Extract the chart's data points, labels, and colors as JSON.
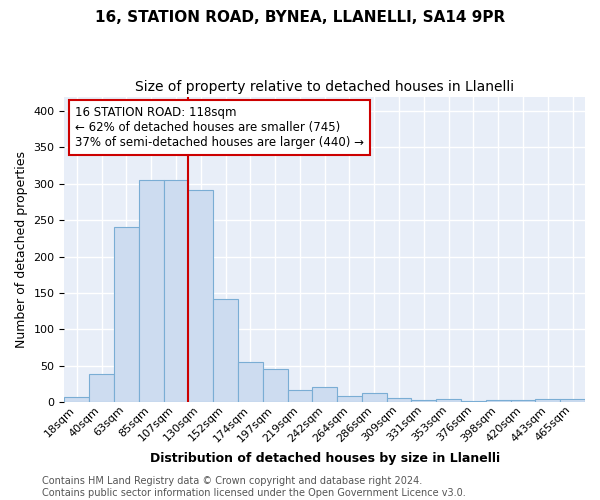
{
  "title_line1": "16, STATION ROAD, BYNEA, LLANELLI, SA14 9PR",
  "title_line2": "Size of property relative to detached houses in Llanelli",
  "xlabel": "Distribution of detached houses by size in Llanelli",
  "ylabel": "Number of detached properties",
  "bar_labels": [
    "18sqm",
    "40sqm",
    "63sqm",
    "85sqm",
    "107sqm",
    "130sqm",
    "152sqm",
    "174sqm",
    "197sqm",
    "219sqm",
    "242sqm",
    "264sqm",
    "286sqm",
    "309sqm",
    "331sqm",
    "353sqm",
    "376sqm",
    "398sqm",
    "420sqm",
    "443sqm",
    "465sqm"
  ],
  "bar_values": [
    7,
    38,
    240,
    305,
    305,
    291,
    142,
    55,
    45,
    17,
    20,
    8,
    12,
    5,
    3,
    4,
    1,
    3,
    2,
    4,
    4
  ],
  "bar_color": "#cddcf0",
  "bar_edgecolor": "#7aadd4",
  "vline_color": "#cc0000",
  "annotation_text": "16 STATION ROAD: 118sqm\n← 62% of detached houses are smaller (745)\n37% of semi-detached houses are larger (440) →",
  "annotation_box_color": "#ffffff",
  "annotation_box_edgecolor": "#cc0000",
  "footer_text": "Contains HM Land Registry data © Crown copyright and database right 2024.\nContains public sector information licensed under the Open Government Licence v3.0.",
  "ylim": [
    0,
    420
  ],
  "background_color": "#ffffff",
  "plot_bg_color": "#e8eef8",
  "grid_color": "#ffffff",
  "title_fontsize": 11,
  "subtitle_fontsize": 10,
  "xlabel_fontsize": 9,
  "ylabel_fontsize": 9,
  "tick_fontsize": 8,
  "footer_fontsize": 7,
  "annot_fontsize": 8.5
}
